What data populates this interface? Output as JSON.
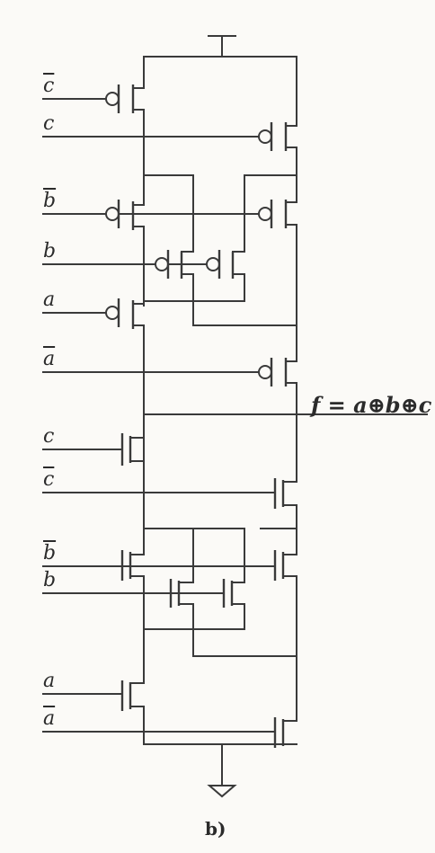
{
  "inputs": [
    {
      "text": "c",
      "bar": true
    },
    {
      "text": "c",
      "bar": false
    },
    {
      "text": "b",
      "bar": true
    },
    {
      "text": "b",
      "bar": false
    },
    {
      "text": "a",
      "bar": false
    },
    {
      "text": "a",
      "bar": true
    },
    {
      "text": "c",
      "bar": false
    },
    {
      "text": "c",
      "bar": true
    },
    {
      "text": "b",
      "bar": true
    },
    {
      "text": "b",
      "bar": false
    },
    {
      "text": "a",
      "bar": false
    },
    {
      "text": "a",
      "bar": true
    }
  ],
  "output_label": "f = a⊕b⊕c",
  "caption": "b)"
}
